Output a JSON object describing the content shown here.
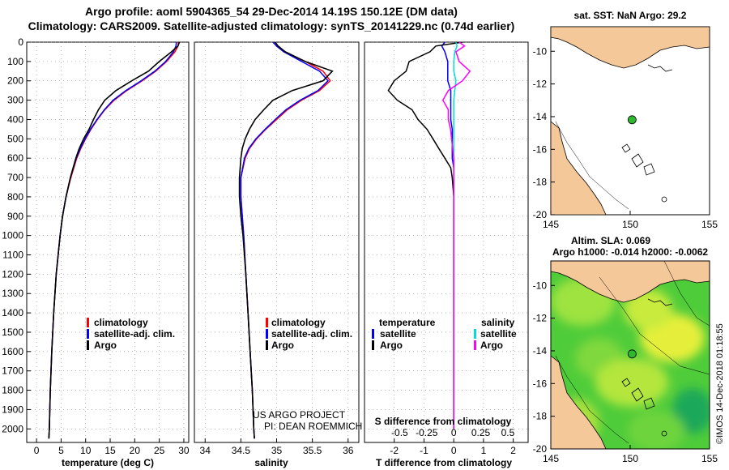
{
  "header": {
    "line1": "Argo profile: aoml 5904365_54 29-Dec-2014 14.19S 150.12E (DM data)",
    "line2": "Climatology: CARS2009. Satellite-adjusted climatology: synTS_20141229.nc (0.74d earlier)"
  },
  "colors": {
    "climatology": "#ff0000",
    "satellite": "#0000ff",
    "argo": "#000000",
    "sat_salinity": "#00dddd",
    "argo_salinity_diff": "#ff00ff",
    "land": "#f5c89a",
    "marker": "#2db82d"
  },
  "credit": {
    "line1": "US ARGO PROJECT",
    "line2": "PI: DEAN ROEMMICH"
  },
  "stamp": "©IMOS 14-Dec-2018 01:18:55",
  "chart_data": [
    {
      "type": "line",
      "title": "",
      "xlabel": "temperature (deg C)",
      "ylabel": "",
      "xlim": [
        -2,
        31
      ],
      "ylim": [
        2070,
        0
      ],
      "xticks": [
        "0",
        "5",
        "10",
        "15",
        "20",
        "25",
        "30"
      ],
      "yticks": [
        "0",
        "100",
        "200",
        "300",
        "400",
        "500",
        "600",
        "700",
        "800",
        "900",
        "1000",
        "1100",
        "1200",
        "1300",
        "1400",
        "1500",
        "1600",
        "1700",
        "1800",
        "1900",
        "2000"
      ],
      "legend": [
        {
          "marker": "I",
          "label": "climatology"
        },
        {
          "marker": "I",
          "label": "satellite-adj. clim."
        },
        {
          "marker": "I",
          "label": "Argo"
        }
      ],
      "depth": [
        0,
        20,
        50,
        100,
        150,
        200,
        250,
        300,
        350,
        400,
        450,
        500,
        550,
        600,
        700,
        800,
        900,
        1000,
        1200,
        1400,
        1600,
        1800,
        2000,
        2050
      ],
      "series": [
        {
          "name": "climatology",
          "values": [
            28.9,
            28.8,
            28.2,
            26.5,
            24.3,
            21.5,
            18.4,
            15.8,
            13.9,
            12.4,
            11.1,
            10.0,
            9.0,
            8.2,
            7.0,
            6.0,
            5.3,
            4.8,
            4.0,
            3.5,
            3.1,
            2.8,
            2.6,
            2.5
          ]
        },
        {
          "name": "satellite-adj. clim.",
          "values": [
            28.5,
            28.4,
            27.9,
            26.3,
            24.1,
            21.3,
            18.2,
            15.6,
            13.8,
            12.3,
            11.0,
            9.9,
            8.9,
            8.1,
            6.9,
            6.0,
            5.3,
            4.8,
            4.0,
            3.5,
            3.1,
            2.8,
            2.6,
            2.5
          ]
        },
        {
          "name": "Argo",
          "values": [
            29.1,
            28.8,
            27.5,
            25.0,
            22.8,
            19.4,
            16.2,
            13.9,
            12.6,
            11.6,
            10.7,
            9.6,
            8.7,
            8.0,
            6.9,
            6.0,
            5.3,
            4.8,
            4.0,
            3.5,
            3.1,
            2.8,
            2.6,
            2.5
          ]
        }
      ]
    },
    {
      "type": "line",
      "title": "",
      "xlabel": "salinity",
      "ylabel": "",
      "xlim": [
        33.85,
        36.15
      ],
      "ylim": [
        2070,
        0
      ],
      "xticks": [
        "34",
        "34.5",
        "35",
        "35.5",
        "36"
      ],
      "legend": [
        {
          "marker": "I",
          "label": "climatology"
        },
        {
          "marker": "I",
          "label": "satellite-adj. clim."
        },
        {
          "marker": "I",
          "label": "Argo"
        }
      ],
      "depth": [
        0,
        20,
        50,
        100,
        150,
        200,
        250,
        300,
        350,
        400,
        450,
        500,
        550,
        600,
        700,
        800,
        900,
        1000,
        1200,
        1400,
        1600,
        1800,
        2000,
        2050
      ],
      "series": [
        {
          "name": "climatology",
          "values": [
            34.95,
            35.0,
            35.1,
            35.4,
            35.65,
            35.75,
            35.6,
            35.35,
            35.15,
            35.0,
            34.85,
            34.72,
            34.62,
            34.56,
            34.5,
            34.5,
            34.52,
            34.54,
            34.57,
            34.6,
            34.63,
            34.66,
            34.68,
            34.69
          ]
        },
        {
          "name": "satellite-adj. clim.",
          "values": [
            34.95,
            35.0,
            35.1,
            35.35,
            35.6,
            35.72,
            35.58,
            35.33,
            35.13,
            34.98,
            34.84,
            34.71,
            34.61,
            34.55,
            34.5,
            34.5,
            34.52,
            34.54,
            34.57,
            34.6,
            34.63,
            34.66,
            34.68,
            34.69
          ]
        },
        {
          "name": "Argo",
          "values": [
            34.98,
            35.02,
            35.12,
            35.4,
            35.78,
            35.65,
            35.22,
            34.95,
            34.82,
            34.7,
            34.62,
            34.56,
            34.52,
            34.5,
            34.48,
            34.48,
            34.5,
            34.53,
            34.57,
            34.6,
            34.63,
            34.66,
            34.68,
            34.69
          ]
        }
      ]
    },
    {
      "type": "line",
      "title": "",
      "xlabel": "T difference from climatology",
      "xlabel_secondary": "S difference from climatology",
      "ylabel": "",
      "xlim": [
        -3,
        2.5
      ],
      "xlim_secondary": [
        -0.825,
        0.6875
      ],
      "ylim": [
        2070,
        0
      ],
      "xticks": [
        "-2",
        "-1",
        "0",
        "1",
        "2"
      ],
      "xticks_secondary": [
        "-0.5",
        "-0.25",
        "0",
        "0.25",
        "0.5"
      ],
      "legend_left_title": "temperature",
      "legend_right_title": "salinity",
      "legend_left": [
        {
          "marker": "I",
          "label": "satellite"
        },
        {
          "marker": "I",
          "label": "Argo"
        }
      ],
      "legend_right": [
        {
          "marker": "I",
          "label": "satellite"
        },
        {
          "marker": "I",
          "label": "Argo"
        }
      ],
      "depth": [
        0,
        20,
        50,
        100,
        150,
        200,
        250,
        300,
        350,
        400,
        450,
        500,
        550,
        600,
        650,
        700,
        800,
        1000,
        1200,
        1400,
        1600,
        1800,
        2000
      ],
      "series": [
        {
          "name": "T satellite",
          "values": [
            -0.3,
            -0.4,
            -0.3,
            -0.2,
            -0.2,
            -0.2,
            -0.1,
            -0.1,
            -0.1,
            -0.1,
            -0.05,
            -0.05,
            -0.05,
            -0.05,
            0,
            0,
            0,
            0,
            0,
            0,
            0,
            0,
            0
          ]
        },
        {
          "name": "T Argo",
          "values": [
            0.3,
            -0.6,
            -0.8,
            -1.5,
            -1.6,
            -2.0,
            -2.2,
            -1.9,
            -1.4,
            -1.2,
            -0.9,
            -0.7,
            -0.5,
            -0.3,
            -0.1,
            -0.05,
            0,
            0,
            0,
            0,
            0,
            0,
            0
          ]
        },
        {
          "name": "S satellite",
          "values": [
            0.02,
            0.03,
            0.01,
            0.0,
            0.0,
            0.02,
            0.01,
            0.0,
            0.0,
            0.0,
            0.0,
            0.0,
            0.0,
            0.0,
            0.0,
            0.0,
            0.0,
            0.0,
            0.0,
            0.0,
            0.0,
            0.0,
            0.0
          ]
        },
        {
          "name": "S Argo",
          "values": [
            0.05,
            0.1,
            0.02,
            0.05,
            0.15,
            0.08,
            -0.05,
            -0.1,
            -0.05,
            -0.05,
            -0.03,
            -0.02,
            -0.01,
            0.0,
            0.0,
            0.0,
            0.0,
            0.0,
            0.0,
            0.0,
            0.0,
            0.0,
            0.0
          ]
        }
      ]
    },
    {
      "type": "scatter",
      "title": "sat. SST: NaN Argo: 29.2",
      "xlabel": "",
      "ylabel": "",
      "xlim": [
        145,
        155
      ],
      "ylim": [
        -20,
        -8.5
      ],
      "xticks": [
        "145",
        "150",
        "155"
      ],
      "yticks": [
        "-10",
        "-12",
        "-14",
        "-16",
        "-18",
        "-20"
      ],
      "points": [
        {
          "lon": 150.12,
          "lat": -14.19,
          "label": "Argo float"
        }
      ]
    },
    {
      "type": "heatmap",
      "title": "Altim. SLA: 0.069",
      "subtitle": "Argo h1000: -0.014 h2000: -0.0062",
      "xlabel": "",
      "ylabel": "",
      "xlim": [
        145,
        155
      ],
      "ylim": [
        -20,
        -8.5
      ],
      "xticks": [
        "145",
        "150",
        "155"
      ],
      "yticks": [
        "-10",
        "-12",
        "-14",
        "-16",
        "-18",
        "-20"
      ],
      "points": [
        {
          "lon": 150.12,
          "lat": -14.19,
          "label": "Argo float"
        }
      ]
    }
  ]
}
